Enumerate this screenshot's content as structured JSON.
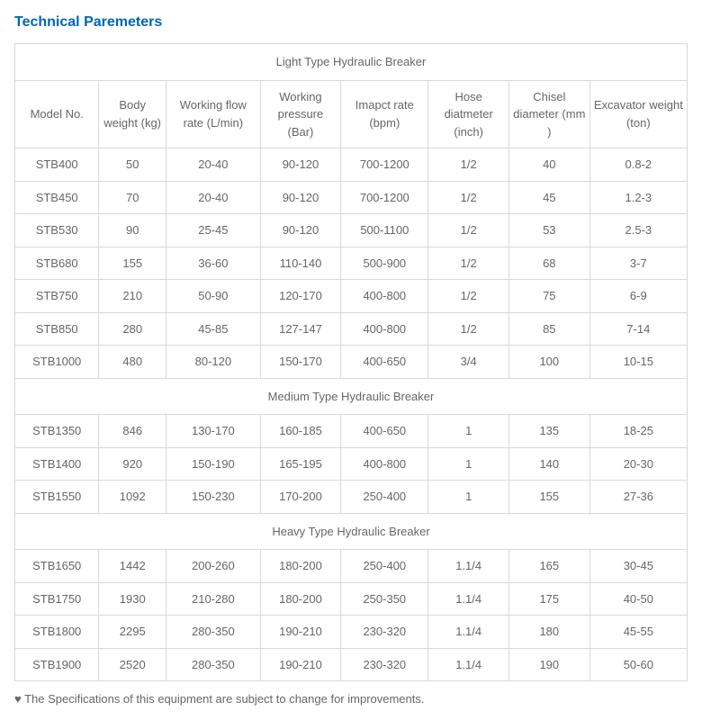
{
  "title": "Technical Paremeters",
  "headers": {
    "model": "Model No.",
    "body": "Body weight (kg)",
    "flow": "Working flow rate (L/min)",
    "pressure": "Working pressure (Bar)",
    "impact": "Imapct rate (bpm)",
    "hose": "Hose diatmeter (inch)",
    "chisel": "Chisel diameter (mm )",
    "excavator": "Excavator weight (ton)"
  },
  "sections": {
    "light": {
      "label": "Light Type Hydraulic Breaker",
      "rows": [
        {
          "model": "STB400",
          "body": "50",
          "flow": "20-40",
          "pressure": "90-120",
          "impact": "700-1200",
          "hose": "1/2",
          "chisel": "40",
          "excavator": "0.8-2"
        },
        {
          "model": "STB450",
          "body": "70",
          "flow": "20-40",
          "pressure": "90-120",
          "impact": "700-1200",
          "hose": "1/2",
          "chisel": "45",
          "excavator": "1.2-3"
        },
        {
          "model": "STB530",
          "body": "90",
          "flow": "25-45",
          "pressure": "90-120",
          "impact": "500-1100",
          "hose": "1/2",
          "chisel": "53",
          "excavator": "2.5-3"
        },
        {
          "model": "STB680",
          "body": "155",
          "flow": "36-60",
          "pressure": "110-140",
          "impact": "500-900",
          "hose": "1/2",
          "chisel": "68",
          "excavator": "3-7"
        },
        {
          "model": "STB750",
          "body": "210",
          "flow": "50-90",
          "pressure": "120-170",
          "impact": "400-800",
          "hose": "1/2",
          "chisel": "75",
          "excavator": "6-9"
        },
        {
          "model": "STB850",
          "body": "280",
          "flow": "45-85",
          "pressure": "127-147",
          "impact": "400-800",
          "hose": "1/2",
          "chisel": "85",
          "excavator": "7-14"
        },
        {
          "model": "STB1000",
          "body": "480",
          "flow": "80-120",
          "pressure": "150-170",
          "impact": "400-650",
          "hose": "3/4",
          "chisel": "100",
          "excavator": "10-15"
        }
      ]
    },
    "medium": {
      "label": "Medium Type Hydraulic Breaker",
      "rows": [
        {
          "model": "STB1350",
          "body": "846",
          "flow": "130-170",
          "pressure": "160-185",
          "impact": "400-650",
          "hose": "1",
          "chisel": "135",
          "excavator": "18-25"
        },
        {
          "model": "STB1400",
          "body": "920",
          "flow": "150-190",
          "pressure": "165-195",
          "impact": "400-800",
          "hose": "1",
          "chisel": "140",
          "excavator": "20-30"
        },
        {
          "model": "STB1550",
          "body": "1092",
          "flow": "150-230",
          "pressure": "170-200",
          "impact": "250-400",
          "hose": "1",
          "chisel": "155",
          "excavator": "27-36"
        }
      ]
    },
    "heavy": {
      "label": "Heavy Type Hydraulic Breaker",
      "rows": [
        {
          "model": "STB1650",
          "body": "1442",
          "flow": "200-260",
          "pressure": "180-200",
          "impact": "250-400",
          "hose": "1.1/4",
          "chisel": "165",
          "excavator": "30-45"
        },
        {
          "model": "STB1750",
          "body": "1930",
          "flow": "210-280",
          "pressure": "180-200",
          "impact": "250-350",
          "hose": "1.1/4",
          "chisel": "175",
          "excavator": "40-50"
        },
        {
          "model": "STB1800",
          "body": "2295",
          "flow": "280-350",
          "pressure": "190-210",
          "impact": "230-320",
          "hose": "1.1/4",
          "chisel": "180",
          "excavator": "45-55"
        },
        {
          "model": "STB1900",
          "body": "2520",
          "flow": "280-350",
          "pressure": "190-210",
          "impact": "230-320",
          "hose": "1.1/4",
          "chisel": "190",
          "excavator": "50-60"
        }
      ]
    }
  },
  "footnote": "♥ The Specifications of this equipment are subject to change for improvements."
}
